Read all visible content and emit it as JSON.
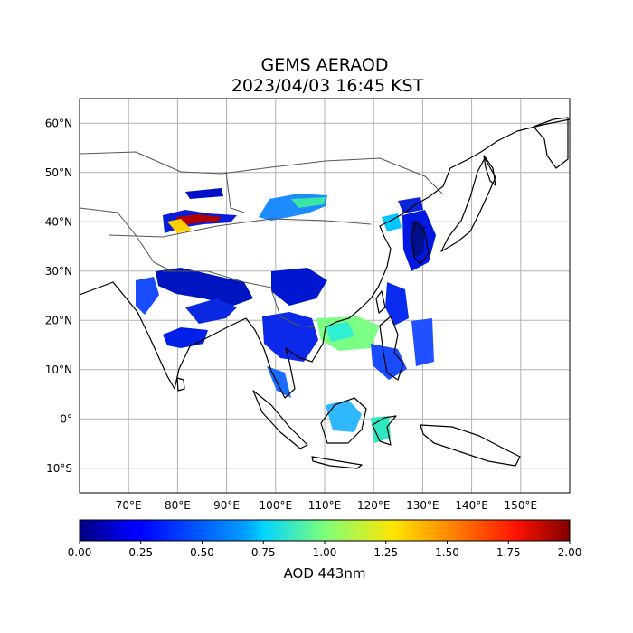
{
  "figure": {
    "title_line1": "GEMS AERAOD",
    "title_line2": "2023/04/03 16:45 KST"
  },
  "map": {
    "lon_range": [
      60,
      160
    ],
    "lat_range": [
      -15,
      65
    ],
    "gridlines": true,
    "lat_ticks": [
      {
        "value": 60,
        "label": "60°N"
      },
      {
        "value": 50,
        "label": "50°N"
      },
      {
        "value": 40,
        "label": "40°N"
      },
      {
        "value": 30,
        "label": "30°N"
      },
      {
        "value": 20,
        "label": "20°N"
      },
      {
        "value": 10,
        "label": "10°N"
      },
      {
        "value": 0,
        "label": "0°"
      },
      {
        "value": -10,
        "label": "10°S"
      }
    ],
    "lon_ticks": [
      {
        "value": 70,
        "label": "70°E"
      },
      {
        "value": 80,
        "label": "80°E"
      },
      {
        "value": 90,
        "label": "90°E"
      },
      {
        "value": 100,
        "label": "100°E"
      },
      {
        "value": 110,
        "label": "110°E"
      },
      {
        "value": 120,
        "label": "120°E"
      },
      {
        "value": 130,
        "label": "130°E"
      },
      {
        "value": 140,
        "label": "140°E"
      },
      {
        "value": 150,
        "label": "150°E"
      }
    ]
  },
  "colorbar": {
    "label": "AOD 443nm",
    "vmin": 0.0,
    "vmax": 2.0,
    "ticks": [
      "0.00",
      "0.25",
      "0.50",
      "0.75",
      "1.00",
      "1.25",
      "1.50",
      "1.75",
      "2.00"
    ],
    "colormap": "jet"
  },
  "colors": {
    "grid": "#b0b0b0",
    "coastline": "#000000",
    "border": "#555555"
  }
}
